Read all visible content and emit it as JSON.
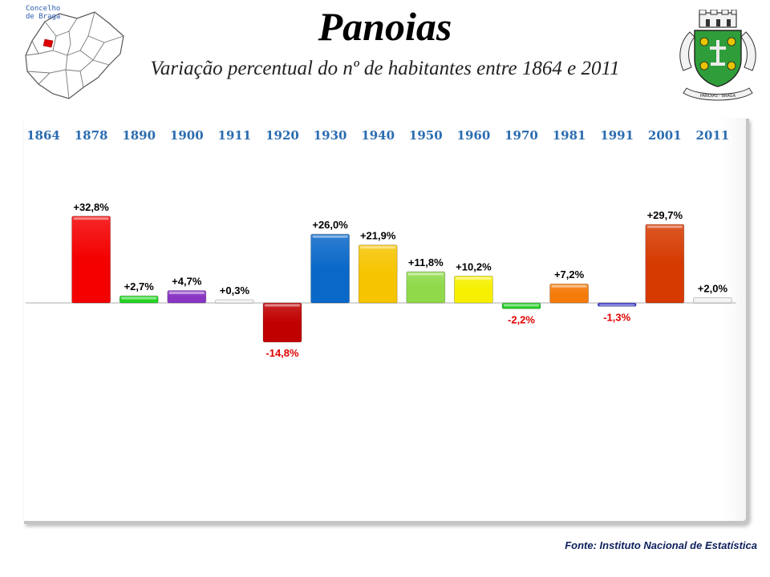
{
  "header": {
    "title": "Panoias",
    "subtitle": "Variação percentual do nº de habitantes entre 1864 e 2011",
    "map_label_line1": "Concelho",
    "map_label_line2": "de Braga",
    "coat_of_arms_text": "PANOIAS - BRAGA"
  },
  "footer": {
    "source": "Fonte: Instituto Nacional de Estatística"
  },
  "colors": {
    "year_label": "#2b6cb0",
    "positive_label": "#000000",
    "negative_label": "#e00000",
    "frame": "#c4c4c4",
    "baseline": "#c8c8c8"
  },
  "chart_data": {
    "type": "bar",
    "title": "Variação percentual do nº de habitantes entre 1864 e 2011",
    "categories": [
      "1864",
      "1878",
      "1890",
      "1900",
      "1911",
      "1920",
      "1930",
      "1940",
      "1950",
      "1960",
      "1970",
      "1981",
      "1991",
      "2001",
      "2011"
    ],
    "series": [
      {
        "values": [
          null,
          32.8,
          2.7,
          4.7,
          0.3,
          -14.8,
          26.0,
          21.9,
          11.8,
          10.2,
          -2.2,
          7.2,
          -1.3,
          29.7,
          2.0
        ],
        "labels": [
          "",
          "+32,8%",
          "+2,7%",
          "+4,7%",
          "+0,3%",
          "-14,8%",
          "+26,0%",
          "+21,9%",
          "+11,8%",
          "+10,2%",
          "-2,2%",
          "+7,2%",
          "-1,3%",
          "+29,7%",
          "+2,0%"
        ],
        "colors": [
          "",
          "#f40000",
          "#22d422",
          "#8a35c4",
          "#f0f0f0",
          "#c00000",
          "#0a68c8",
          "#f6c400",
          "#8fd94a",
          "#f6f000",
          "#22cc22",
          "#f57b0a",
          "#3a3ac8",
          "#d63a00",
          "#eeeeee"
        ]
      }
    ],
    "ylim": [
      -33.4,
      45.8
    ],
    "xlabel": "",
    "ylabel": "",
    "grid": false,
    "legend": "none"
  }
}
